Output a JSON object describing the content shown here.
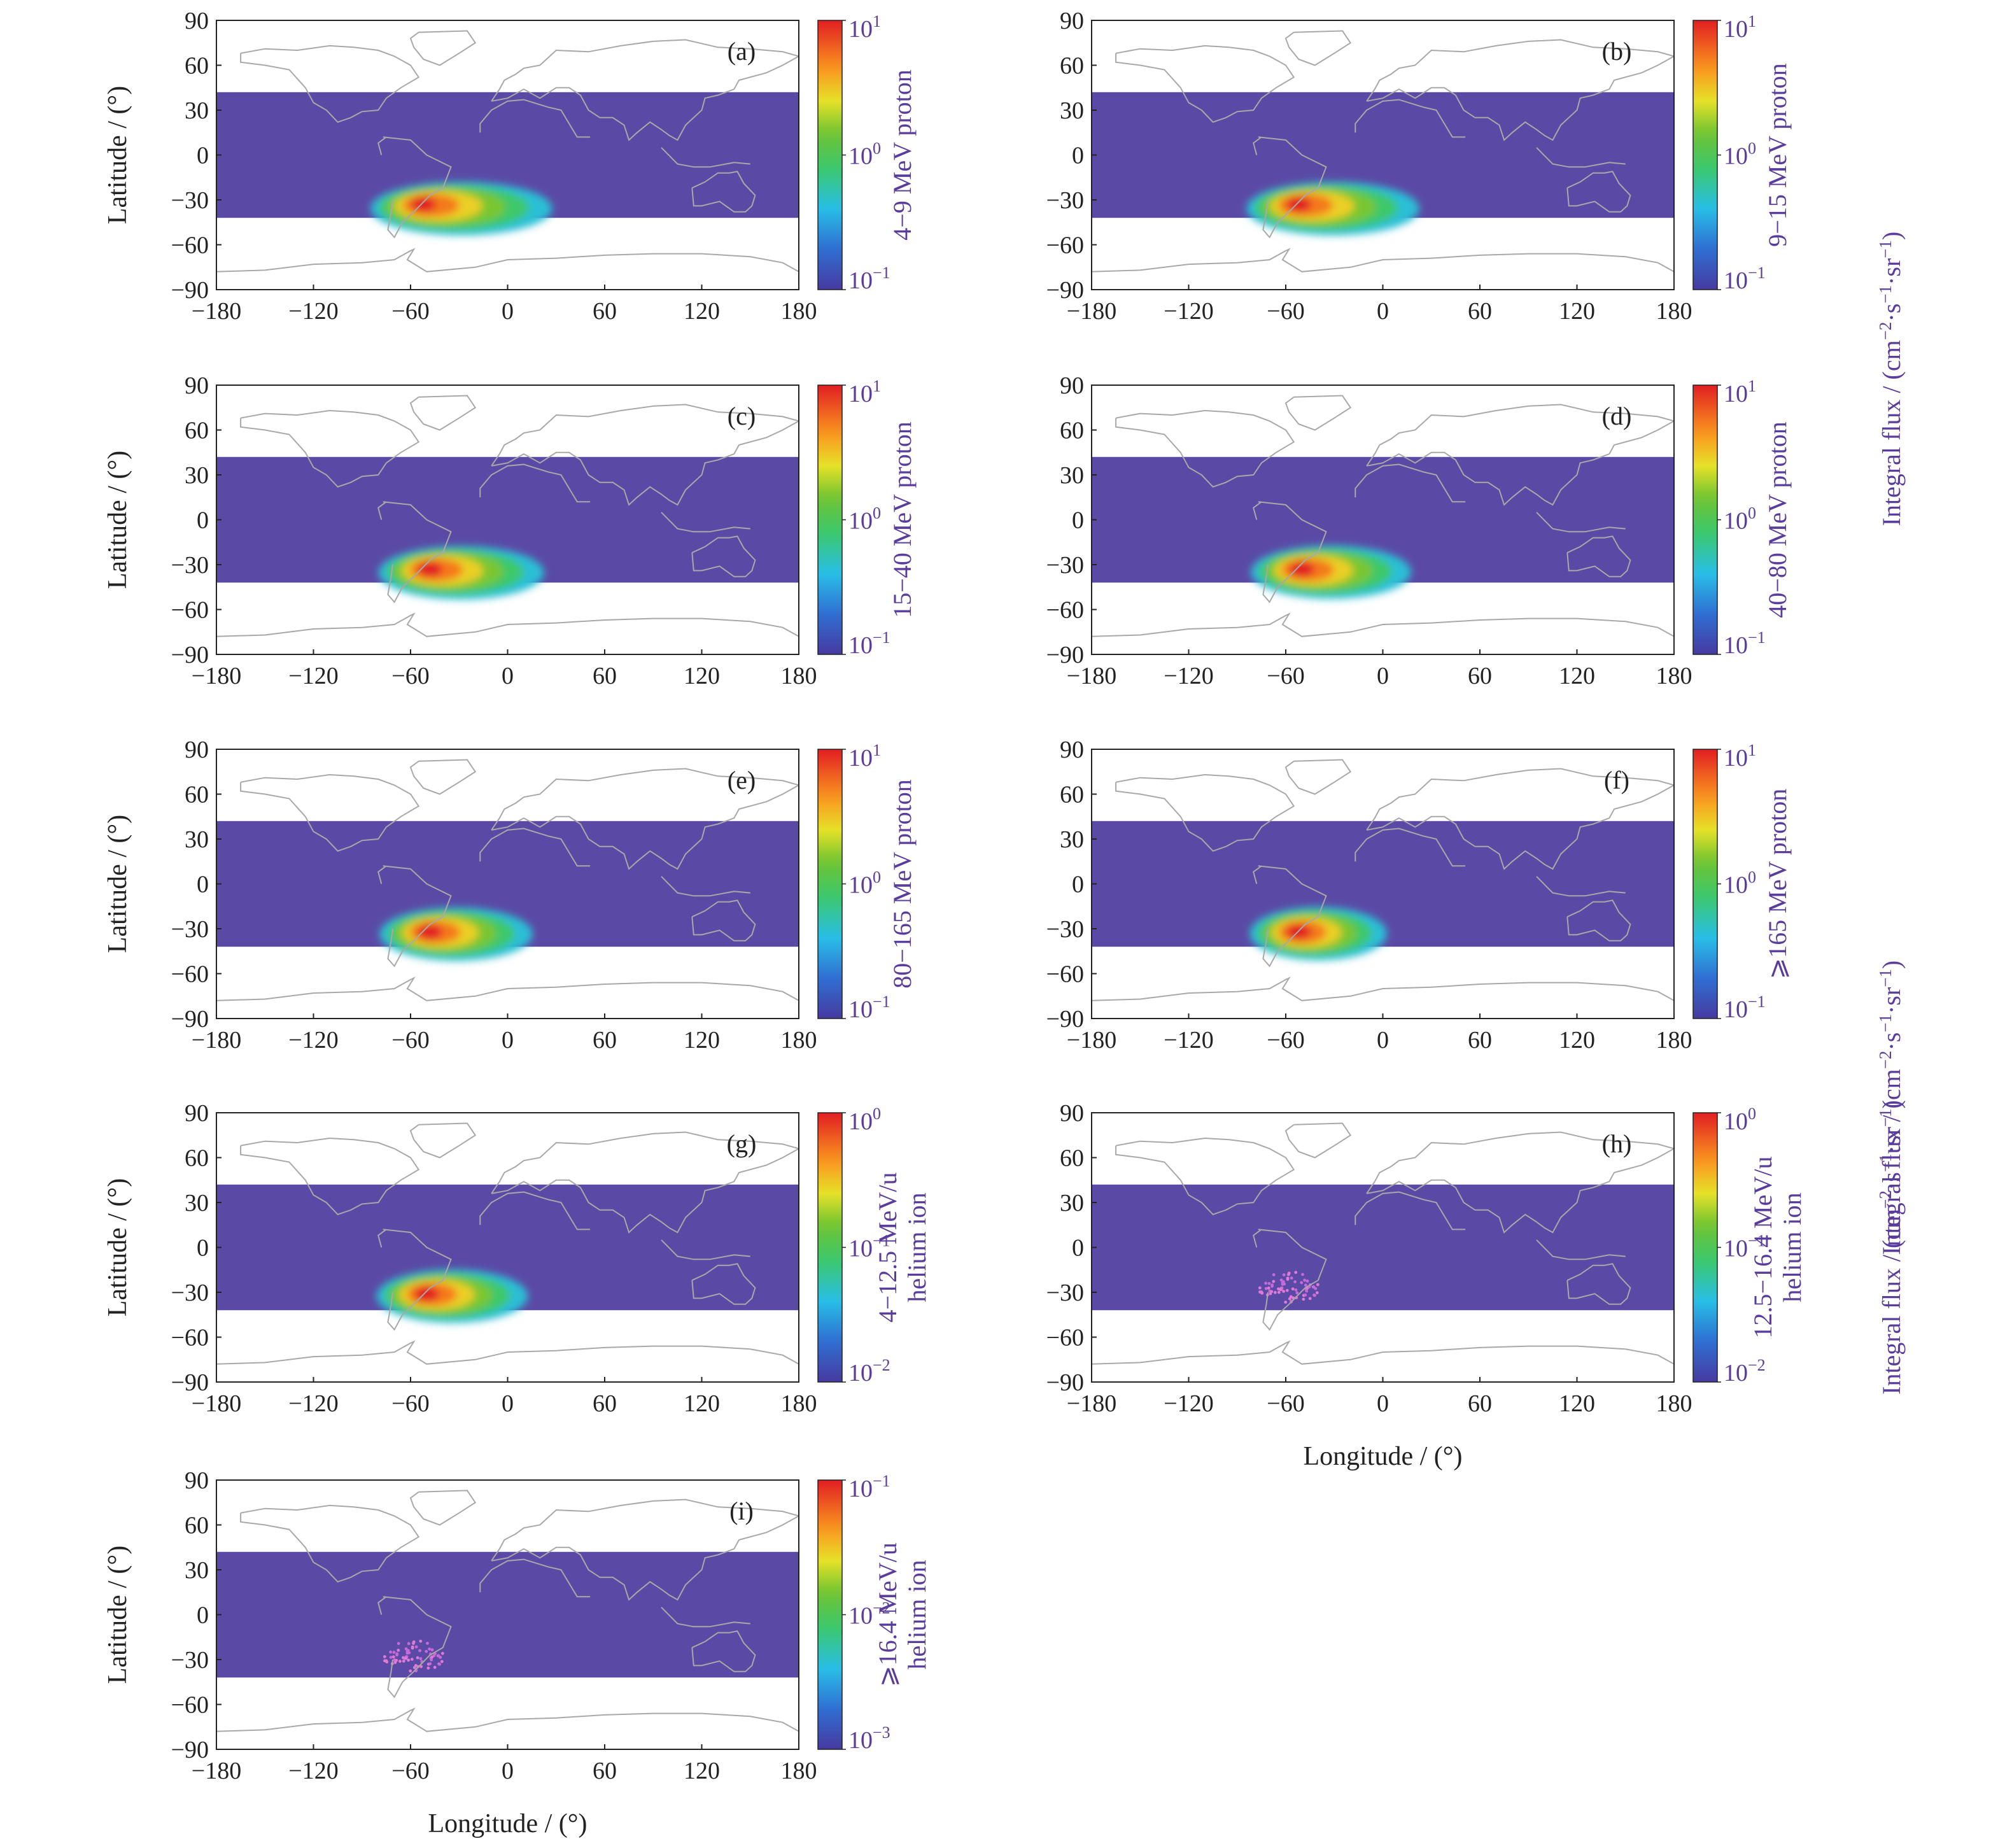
{
  "figure": {
    "axis_color": "#222222",
    "label_color": "#5a3c9c",
    "map_background": "#5b4aa5",
    "coastline_color": "#a8a8a8"
  },
  "chart_data": [
    {
      "type": "heatmap",
      "panel": "(a)",
      "colorbar_label": [
        "4−9 MeV proton"
      ],
      "colorbar_ticks": [
        {
          "m": "10",
          "e": "1"
        },
        {
          "m": "10",
          "e": "0"
        },
        {
          "m": "10",
          "e": "−1"
        }
      ],
      "colorbar_range_log10": [
        -1,
        1
      ],
      "xlim": [
        -180,
        180
      ],
      "ylim": [
        -90,
        90
      ],
      "data_lat_range": [
        -42,
        42
      ],
      "xticks": [
        "−180",
        "−120",
        "−60",
        "0",
        "60",
        "120",
        "180"
      ],
      "yticks": [
        "90",
        "60",
        "30",
        "0",
        "−30",
        "−60",
        "−90"
      ],
      "ylabel": "Latitude / (°)",
      "xlabel": "",
      "saa_peak": {
        "lon": -52,
        "lat": -33,
        "level": 1.0
      },
      "saa_tail": {
        "lon": 0,
        "lat": -40,
        "level": 0.85
      }
    },
    {
      "type": "heatmap",
      "panel": "(b)",
      "colorbar_label": [
        "9−15 MeV proton"
      ],
      "colorbar_ticks": [
        {
          "m": "10",
          "e": "1"
        },
        {
          "m": "10",
          "e": "0"
        },
        {
          "m": "10",
          "e": "−1"
        }
      ],
      "colorbar_range_log10": [
        -1,
        1
      ],
      "xlim": [
        -180,
        180
      ],
      "ylim": [
        -90,
        90
      ],
      "data_lat_range": [
        -42,
        42
      ],
      "xticks": [
        "−180",
        "−120",
        "−60",
        "0",
        "60",
        "120",
        "180"
      ],
      "yticks": [
        "90",
        "60",
        "30",
        "0",
        "−30",
        "−60",
        "−90"
      ],
      "ylabel": "",
      "xlabel": "",
      "saa_peak": {
        "lon": -52,
        "lat": -33,
        "level": 1.0
      },
      "saa_tail": {
        "lon": -5,
        "lat": -40,
        "level": 0.6
      }
    },
    {
      "type": "heatmap",
      "panel": "(c)",
      "colorbar_label": [
        "15−40 MeV proton"
      ],
      "colorbar_ticks": [
        {
          "m": "10",
          "e": "1"
        },
        {
          "m": "10",
          "e": "0"
        },
        {
          "m": "10",
          "e": "−1"
        }
      ],
      "colorbar_range_log10": [
        -1,
        1
      ],
      "xlim": [
        -180,
        180
      ],
      "ylim": [
        -90,
        90
      ],
      "data_lat_range": [
        -42,
        42
      ],
      "xticks": [
        "−180",
        "−120",
        "−60",
        "0",
        "60",
        "120",
        "180"
      ],
      "yticks": [
        "90",
        "60",
        "30",
        "0",
        "−30",
        "−60",
        "−90"
      ],
      "ylabel": "Latitude / (°)",
      "xlabel": "",
      "saa_peak": {
        "lon": -48,
        "lat": -33,
        "level": 1.0
      },
      "saa_tail": {
        "lon": -5,
        "lat": -39,
        "level": 0.55
      }
    },
    {
      "type": "heatmap",
      "panel": "(d)",
      "colorbar_label": [
        "40−80 MeV proton"
      ],
      "colorbar_ticks": [
        {
          "m": "10",
          "e": "1"
        },
        {
          "m": "10",
          "e": "0"
        },
        {
          "m": "10",
          "e": "−1"
        }
      ],
      "colorbar_range_log10": [
        -1,
        1
      ],
      "xlim": [
        -180,
        180
      ],
      "ylim": [
        -90,
        90
      ],
      "data_lat_range": [
        -42,
        42
      ],
      "xticks": [
        "−180",
        "−120",
        "−60",
        "0",
        "60",
        "120",
        "180"
      ],
      "yticks": [
        "90",
        "60",
        "30",
        "0",
        "−30",
        "−60",
        "−90"
      ],
      "ylabel": "",
      "xlabel": "",
      "saa_peak": {
        "lon": -50,
        "lat": -33,
        "level": 1.0
      },
      "saa_tail": {
        "lon": -10,
        "lat": -38,
        "level": 0.5
      }
    },
    {
      "type": "heatmap",
      "panel": "(e)",
      "colorbar_label": [
        "80−165 MeV proton"
      ],
      "colorbar_ticks": [
        {
          "m": "10",
          "e": "1"
        },
        {
          "m": "10",
          "e": "0"
        },
        {
          "m": "10",
          "e": "−1"
        }
      ],
      "colorbar_range_log10": [
        -1,
        1
      ],
      "xlim": [
        -180,
        180
      ],
      "ylim": [
        -90,
        90
      ],
      "data_lat_range": [
        -42,
        42
      ],
      "xticks": [
        "−180",
        "−120",
        "−60",
        "0",
        "60",
        "120",
        "180"
      ],
      "yticks": [
        "90",
        "60",
        "30",
        "0",
        "−30",
        "−60",
        "−90"
      ],
      "ylabel": "Latitude / (°)",
      "xlabel": "",
      "saa_peak": {
        "lon": -48,
        "lat": -32,
        "level": 1.0
      },
      "saa_tail": {
        "lon": -12,
        "lat": -36,
        "level": 0.45
      }
    },
    {
      "type": "heatmap",
      "panel": "(f)",
      "colorbar_label": [
        "⩾165 MeV proton"
      ],
      "colorbar_ticks": [
        {
          "m": "10",
          "e": "1"
        },
        {
          "m": "10",
          "e": "0"
        },
        {
          "m": "10",
          "e": "−1"
        }
      ],
      "colorbar_range_log10": [
        -1,
        1
      ],
      "xlim": [
        -180,
        180
      ],
      "ylim": [
        -90,
        90
      ],
      "data_lat_range": [
        -42,
        42
      ],
      "xticks": [
        "−180",
        "−120",
        "−60",
        "0",
        "60",
        "120",
        "180"
      ],
      "yticks": [
        "90",
        "60",
        "30",
        "0",
        "−30",
        "−60",
        "−90"
      ],
      "ylabel": "",
      "xlabel": "",
      "saa_peak": {
        "lon": -52,
        "lat": -32,
        "level": 1.0
      },
      "saa_tail": {
        "lon": -25,
        "lat": -35,
        "level": 0.35
      }
    },
    {
      "type": "heatmap",
      "panel": "(g)",
      "colorbar_label": [
        "4−12.5 MeV/u",
        "helium ion"
      ],
      "colorbar_ticks": [
        {
          "m": "10",
          "e": "0"
        },
        {
          "m": "10",
          "e": "−1"
        },
        {
          "m": "10",
          "e": "−2"
        }
      ],
      "colorbar_range_log10": [
        -2,
        0
      ],
      "xlim": [
        -180,
        180
      ],
      "ylim": [
        -90,
        90
      ],
      "data_lat_range": [
        -42,
        42
      ],
      "xticks": [
        "−180",
        "−120",
        "−60",
        "0",
        "60",
        "120",
        "180"
      ],
      "yticks": [
        "90",
        "60",
        "30",
        "0",
        "−30",
        "−60",
        "−90"
      ],
      "ylabel": "Latitude / (°)",
      "xlabel": "",
      "saa_peak": {
        "lon": -50,
        "lat": -31,
        "level": 1.0
      },
      "saa_tail": {
        "lon": -15,
        "lat": -35,
        "level": 0.4
      }
    },
    {
      "type": "heatmap",
      "panel": "(h)",
      "colorbar_label": [
        "12.5−16.4 MeV/u",
        "helium ion"
      ],
      "colorbar_ticks": [
        {
          "m": "10",
          "e": "0"
        },
        {
          "m": "10",
          "e": "−1"
        },
        {
          "m": "10",
          "e": "−2"
        }
      ],
      "colorbar_range_log10": [
        -2,
        0
      ],
      "xlim": [
        -180,
        180
      ],
      "ylim": [
        -90,
        90
      ],
      "data_lat_range": [
        -42,
        42
      ],
      "xticks": [
        "−180",
        "−120",
        "−60",
        "0",
        "60",
        "120",
        "180"
      ],
      "yticks": [
        "90",
        "60",
        "30",
        "0",
        "−30",
        "−60",
        "−90"
      ],
      "ylabel": "",
      "xlabel": "Longitude / (°)",
      "saa_speckle": {
        "lon": -58,
        "lat": -27
      }
    },
    {
      "type": "heatmap",
      "panel": "(i)",
      "colorbar_label": [
        "⩾16.4 MeV/u",
        "helium ion"
      ],
      "colorbar_ticks": [
        {
          "m": "10",
          "e": "−1"
        },
        {
          "m": "10",
          "e": "−2"
        },
        {
          "m": "10",
          "e": "−3"
        }
      ],
      "colorbar_range_log10": [
        -3,
        -1
      ],
      "xlim": [
        -180,
        180
      ],
      "ylim": [
        -90,
        90
      ],
      "data_lat_range": [
        -42,
        42
      ],
      "xticks": [
        "−180",
        "−120",
        "−60",
        "0",
        "60",
        "120",
        "180"
      ],
      "yticks": [
        "90",
        "60",
        "30",
        "0",
        "−30",
        "−60",
        "−90"
      ],
      "ylabel": "Latitude / (°)",
      "xlabel": "Longitude / (°)",
      "saa_speckle": {
        "lon": -58,
        "lat": -28
      }
    }
  ],
  "shared_labels": [
    {
      "text": "Integral flux / (cm",
      "sup1": "−2",
      "mid": "·s",
      "sup2": "−1",
      "mid2": "·sr",
      "sup3": "−1",
      "end": ")"
    },
    {
      "text": "Integral flux / (cm",
      "sup1": "−2",
      "mid": "·s",
      "sup2": "−1",
      "mid2": "·sr",
      "sup3": "−1",
      "end": ")"
    },
    {
      "text": "Integral flux / (cm",
      "sup1": "−2",
      "mid": "·s",
      "sup2": "−1",
      "mid2": "·sr",
      "sup3": "−1",
      "end": ")"
    }
  ]
}
